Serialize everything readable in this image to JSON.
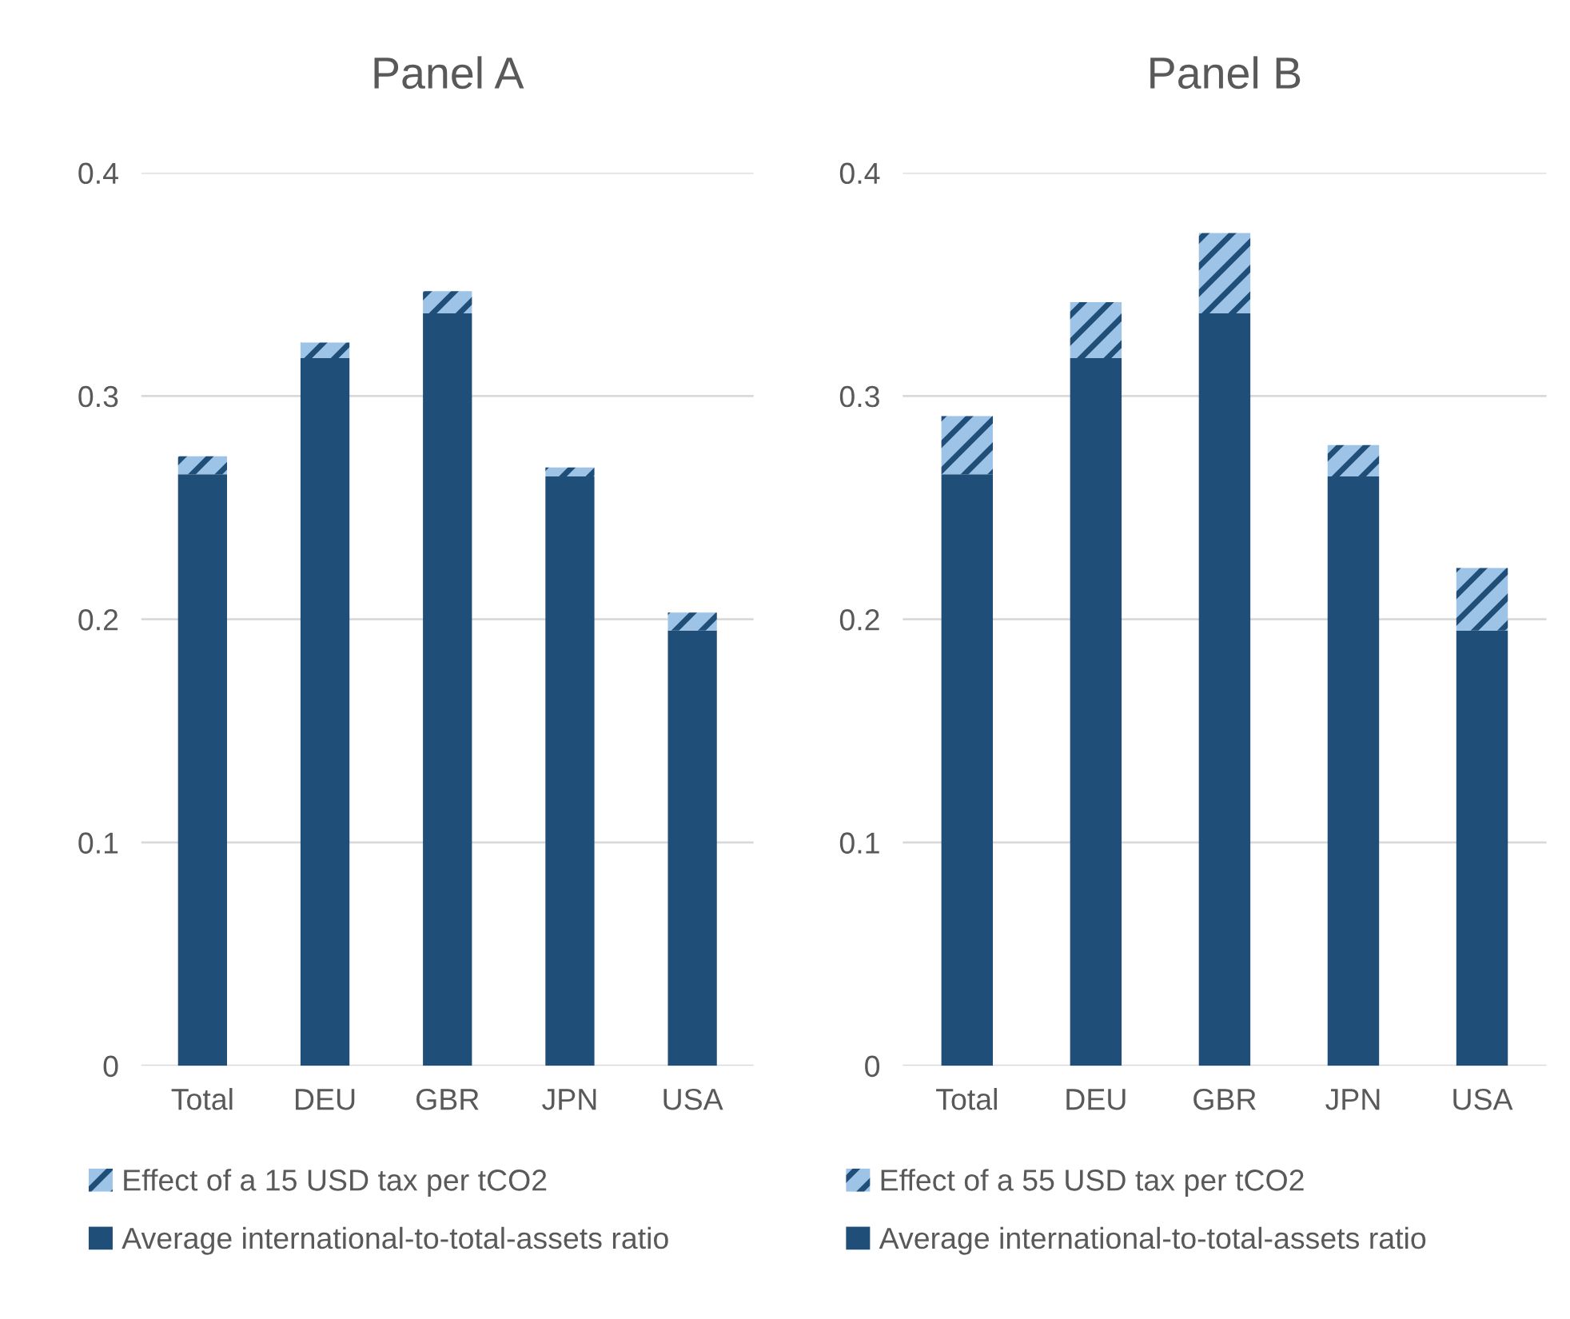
{
  "chart_data": [
    {
      "type": "bar",
      "title": "Panel A",
      "categories": [
        "Total",
        "DEU",
        "GBR",
        "JPN",
        "USA"
      ],
      "stacked": true,
      "ylim": [
        0,
        0.4
      ],
      "yticks": [
        0,
        0.1,
        0.2,
        0.3,
        0.4
      ],
      "grid": "y",
      "legend": "bottom",
      "series": [
        {
          "name": "Average international-to-total-assets ratio",
          "color": "#1f4e79",
          "values": [
            0.265,
            0.317,
            0.337,
            0.264,
            0.195
          ]
        },
        {
          "name": "Effect of a 15 USD tax per tCO2",
          "color": "#9dc3e6",
          "values": [
            0.008,
            0.007,
            0.01,
            0.004,
            0.008
          ]
        }
      ]
    },
    {
      "type": "bar",
      "title": "Panel B",
      "categories": [
        "Total",
        "DEU",
        "GBR",
        "JPN",
        "USA"
      ],
      "stacked": true,
      "ylim": [
        0,
        0.4
      ],
      "yticks": [
        0,
        0.1,
        0.2,
        0.3,
        0.4
      ],
      "grid": "y",
      "legend": "bottom",
      "series": [
        {
          "name": "Average international-to-total-assets ratio",
          "color": "#1f4e79",
          "values": [
            0.265,
            0.317,
            0.337,
            0.264,
            0.195
          ]
        },
        {
          "name": "Effect of a 55 USD tax per tCO2",
          "color": "#9dc3e6",
          "values": [
            0.026,
            0.025,
            0.036,
            0.014,
            0.028
          ]
        }
      ]
    }
  ]
}
